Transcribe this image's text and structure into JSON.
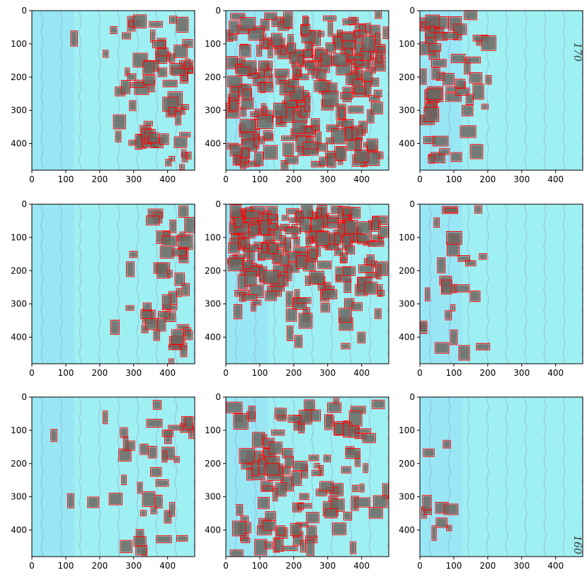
{
  "figure": {
    "panel_count": 9,
    "layout": "3x3",
    "background_color": "#ffffff",
    "image_tint_color": "#9ff0f2",
    "box_color": "#ff0000",
    "axes_color": "#000000"
  },
  "axes": {
    "x_ticks": [
      "0",
      "100",
      "200",
      "300",
      "400"
    ],
    "y_ticks": [
      "0",
      "100",
      "200",
      "300",
      "400"
    ],
    "x_range": [
      0,
      480
    ],
    "y_range": [
      0,
      480
    ]
  },
  "panels": [
    {
      "id": "r1c1",
      "density": "right-heavy",
      "handwriting": ""
    },
    {
      "id": "r1c2",
      "density": "dense",
      "handwriting": ""
    },
    {
      "id": "r1c3",
      "density": "left-upper",
      "handwriting": "170"
    },
    {
      "id": "r2c1",
      "density": "right-sparse",
      "handwriting": ""
    },
    {
      "id": "r2c2",
      "density": "dense-top",
      "handwriting": ""
    },
    {
      "id": "r2c3",
      "density": "sparse-left",
      "handwriting": ""
    },
    {
      "id": "r3c1",
      "density": "right-medium",
      "handwriting": ""
    },
    {
      "id": "r3c2",
      "density": "medium",
      "handwriting": ""
    },
    {
      "id": "r3c3",
      "density": "very-sparse",
      "handwriting": "160"
    }
  ]
}
